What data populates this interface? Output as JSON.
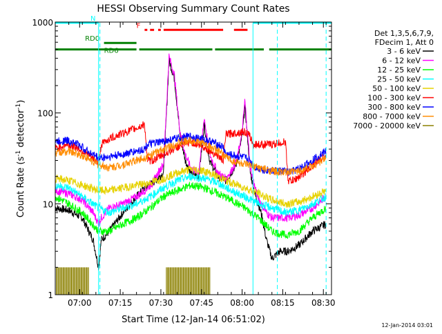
{
  "chart_data": {
    "type": "line",
    "title": "HESSI Observing Summary Count Rates",
    "xlabel": "Start Time (12-Jan-14 06:51:02)",
    "ylabel_main": "Count Rate (s",
    "ylabel_sup1": "-1",
    "ylabel_mid": " detector",
    "ylabel_sup2": "-1",
    "ylabel_end": ")",
    "timestamp": "12-Jan-2014 03:01",
    "x_ticks": [
      "07:00",
      "07:15",
      "07:30",
      "07:45",
      "08:00",
      "08:15",
      "08:30"
    ],
    "x_tick_minutes": [
      9,
      24,
      39,
      54,
      69,
      84,
      99
    ],
    "xlim_minutes": [
      0,
      102
    ],
    "y_scale": "log",
    "ylim": [
      1,
      1000
    ],
    "y_ticks": [
      1,
      10,
      100,
      1000
    ],
    "y_tick_labels": [
      "1",
      "10",
      "100",
      "1000"
    ],
    "legend": {
      "header": [
        "Det 1,3,5,6,7,9,",
        "FDecim 1, Att 0"
      ],
      "entries": [
        {
          "label": "3 - 6 keV",
          "color": "#000000"
        },
        {
          "label": "6 - 12 keV",
          "color": "#ff00ff"
        },
        {
          "label": "12 - 25 keV",
          "color": "#00ff00"
        },
        {
          "label": "25 - 50 keV",
          "color": "#00ffff"
        },
        {
          "label": "50 - 100 keV",
          "color": "#e6d200"
        },
        {
          "label": "100 - 300 keV",
          "color": "#ff0000"
        },
        {
          "label": "300 - 800 keV",
          "color": "#0000ff"
        },
        {
          "label": "800 - 7000 keV",
          "color": "#ff8c00"
        },
        {
          "label": "7000 - 20000 keV",
          "color": "#8b8000"
        }
      ]
    },
    "attenuator_bars": [
      {
        "label": "N",
        "color": "#00ffff",
        "level": 985,
        "segments": [
          [
            0,
            16
          ],
          [
            73,
            102
          ]
        ]
      },
      {
        "label": "F",
        "color": "#ff0000",
        "level": 820,
        "segments": [
          [
            33,
            34
          ],
          [
            35,
            36.5
          ],
          [
            38,
            39
          ],
          [
            40,
            62
          ],
          [
            66,
            71
          ]
        ]
      },
      {
        "label": "RD0",
        "color": "#008000",
        "level": 590,
        "segments": [
          [
            18,
            30
          ]
        ]
      },
      {
        "label": "RD6",
        "color": "#008000",
        "level": 500,
        "segments": [
          [
            0,
            30
          ],
          [
            31,
            58
          ],
          [
            59,
            77
          ],
          [
            79,
            102
          ]
        ]
      }
    ],
    "night_markers_minutes": [
      16.5,
      82,
      100
    ],
    "series": [
      {
        "name": "3 - 6 keV",
        "color": "#000000",
        "x": [
          0,
          5,
          10,
          14,
          16,
          17,
          20,
          25,
          30,
          33,
          36,
          40,
          42,
          44,
          46,
          48,
          50,
          53,
          55,
          57,
          60,
          63,
          65,
          67,
          69,
          70,
          71,
          72,
          74,
          76,
          78,
          80,
          83,
          86,
          90,
          95,
          100
        ],
        "y": [
          9,
          8.5,
          7,
          4,
          2,
          4,
          5,
          8,
          12,
          15,
          17,
          22,
          380,
          240,
          60,
          30,
          22,
          20,
          75,
          30,
          20,
          18,
          22,
          28,
          55,
          120,
          55,
          22,
          12,
          8,
          4,
          2.5,
          3,
          3,
          3.5,
          5,
          6
        ]
      },
      {
        "name": "6 - 12 keV",
        "color": "#ff00ff",
        "x": [
          0,
          5,
          10,
          14,
          16,
          17,
          20,
          25,
          30,
          33,
          36,
          40,
          42,
          44,
          46,
          48,
          50,
          53,
          55,
          57,
          60,
          63,
          65,
          67,
          69,
          70,
          71,
          72,
          74,
          76,
          78,
          80,
          83,
          86,
          90,
          95,
          100
        ],
        "y": [
          14,
          13,
          11,
          8,
          6,
          7,
          9,
          10,
          12,
          14,
          17,
          28,
          420,
          260,
          65,
          35,
          25,
          22,
          90,
          35,
          22,
          19,
          23,
          30,
          60,
          140,
          60,
          25,
          14,
          10,
          8,
          7,
          7,
          7,
          7.5,
          9,
          12
        ]
      },
      {
        "name": "12 - 25 keV",
        "color": "#00ff00",
        "x": [
          0,
          5,
          10,
          16,
          20,
          25,
          30,
          35,
          40,
          45,
          50,
          55,
          60,
          65,
          70,
          75,
          80,
          85,
          90,
          95,
          100
        ],
        "y": [
          12,
          10,
          8,
          5,
          5,
          6,
          7,
          9,
          12,
          14,
          16,
          15,
          13,
          11,
          9,
          7,
          5,
          4.5,
          5,
          7,
          9
        ]
      },
      {
        "name": "25 - 50 keV",
        "color": "#00ffff",
        "x": [
          0,
          5,
          10,
          16,
          20,
          25,
          30,
          35,
          40,
          45,
          50,
          55,
          60,
          65,
          70,
          75,
          80,
          85,
          90,
          95,
          100
        ],
        "y": [
          16,
          15,
          12,
          9,
          8,
          9,
          10,
          12,
          15,
          18,
          20,
          19,
          17,
          14,
          12,
          10,
          9,
          8,
          8.5,
          10,
          12
        ]
      },
      {
        "name": "50 - 100 keV",
        "color": "#e6d200",
        "x": [
          0,
          5,
          10,
          16,
          20,
          25,
          30,
          35,
          40,
          45,
          50,
          55,
          60,
          65,
          70,
          75,
          80,
          85,
          90,
          95,
          100
        ],
        "y": [
          19,
          18,
          16,
          14,
          14,
          15,
          16,
          17,
          19,
          22,
          24,
          23,
          20,
          17,
          15,
          13,
          11,
          10,
          10.5,
          12,
          14
        ]
      },
      {
        "name": "100 - 300 keV",
        "color": "#ff0000",
        "x": [
          0,
          4,
          8,
          12,
          16,
          17,
          20,
          25,
          30,
          33,
          34,
          36,
          40,
          45,
          50,
          55,
          60,
          62,
          63,
          66,
          70,
          72,
          73,
          76,
          80,
          85,
          86,
          88,
          92,
          96,
          100
        ],
        "y": [
          40,
          45,
          42,
          35,
          28,
          45,
          52,
          60,
          68,
          75,
          30,
          30,
          35,
          42,
          48,
          42,
          34,
          30,
          58,
          60,
          62,
          55,
          45,
          45,
          45,
          48,
          18,
          18,
          22,
          28,
          34
        ]
      },
      {
        "name": "300 - 800 keV",
        "color": "#0000ff",
        "x": [
          0,
          4,
          8,
          12,
          16,
          17,
          20,
          25,
          30,
          33,
          34,
          38,
          42,
          46,
          50,
          54,
          58,
          62,
          63,
          66,
          70,
          72,
          73,
          76,
          80,
          85,
          86,
          88,
          92,
          96,
          100
        ],
        "y": [
          48,
          50,
          46,
          38,
          32,
          32,
          33,
          35,
          38,
          40,
          45,
          47,
          50,
          53,
          55,
          52,
          48,
          42,
          35,
          34,
          32,
          30,
          26,
          24,
          23,
          23,
          22,
          23,
          26,
          32,
          38
        ]
      },
      {
        "name": "800 - 7000 keV",
        "color": "#ff8c00",
        "x": [
          0,
          5,
          10,
          16,
          20,
          25,
          30,
          35,
          40,
          45,
          50,
          55,
          60,
          65,
          70,
          75,
          80,
          85,
          90,
          95,
          100
        ],
        "y": [
          36,
          38,
          34,
          27,
          25,
          27,
          30,
          34,
          40,
          46,
          50,
          46,
          38,
          30,
          27,
          25,
          23,
          22,
          23,
          26,
          32
        ]
      },
      {
        "name": "7000 - 20000 keV",
        "color": "#8b8000",
        "x": [
          0.5,
          1,
          2,
          3,
          4,
          5,
          6,
          7,
          8,
          9,
          10,
          11,
          12,
          41,
          42,
          43,
          44,
          45,
          46,
          47,
          48,
          49,
          50,
          51,
          52,
          53,
          54,
          55,
          56,
          57
        ],
        "y": [
          2,
          2,
          2,
          2,
          2,
          2,
          2,
          2,
          2,
          2,
          2,
          2,
          2,
          2,
          2,
          2,
          2,
          2,
          2,
          2,
          2,
          2,
          2,
          2,
          2,
          2,
          2,
          2,
          2,
          2
        ]
      }
    ]
  }
}
